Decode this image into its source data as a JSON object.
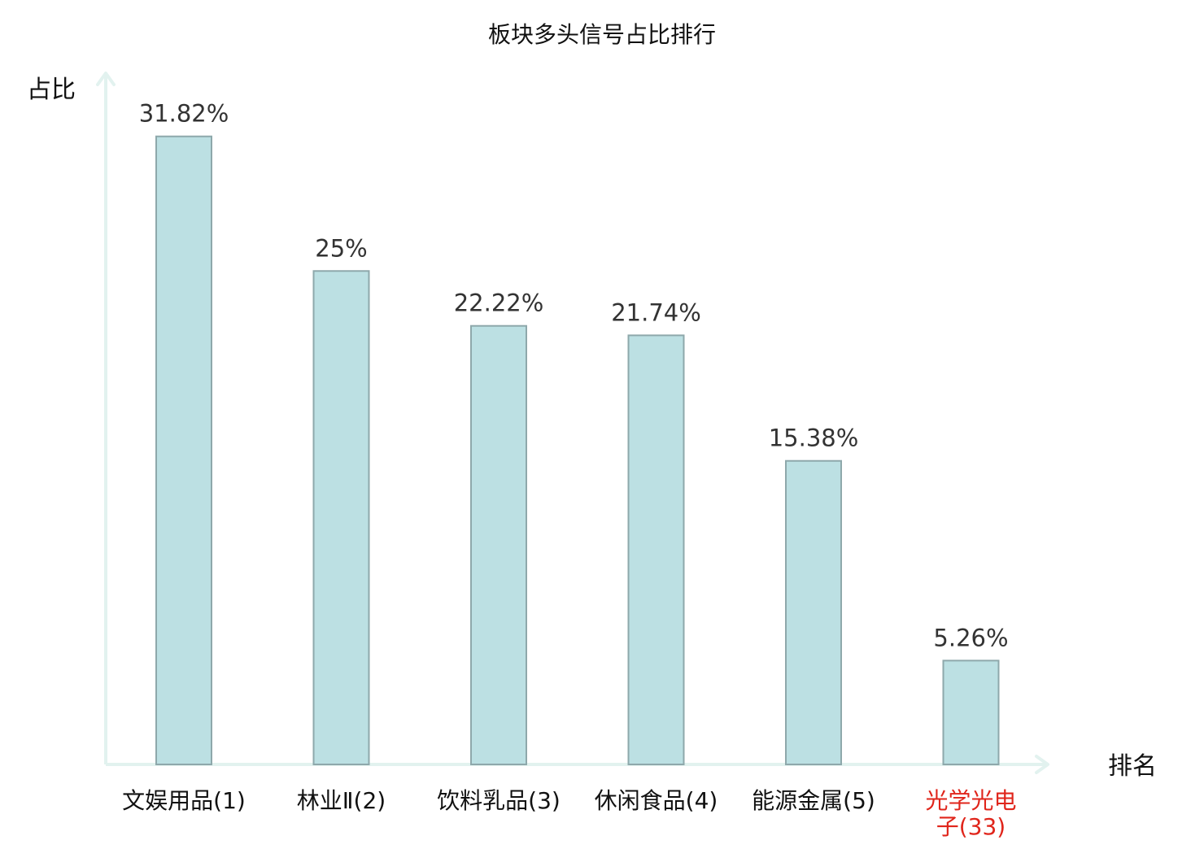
{
  "chart_data": {
    "type": "bar",
    "title": "板块多头信号占比排行",
    "ylabel": "占比",
    "xlabel": "排名",
    "categories": [
      "文娱用品(1)",
      "林业Ⅱ(2)",
      "饮料乳品(3)",
      "休闲食品(4)",
      "能源金属(5)",
      "光学光电子(33)"
    ],
    "category_lines": [
      [
        "文娱用品(1)"
      ],
      [
        "林业Ⅱ(2)"
      ],
      [
        "饮料乳品(3)"
      ],
      [
        "休闲食品(4)"
      ],
      [
        "能源金属(5)"
      ],
      [
        "光学光电",
        "子(33)"
      ]
    ],
    "values": [
      31.82,
      25,
      22.22,
      21.74,
      15.38,
      5.26
    ],
    "value_labels": [
      "31.82%",
      "25%",
      "22.22%",
      "21.74%",
      "15.38%",
      "5.26%"
    ],
    "highlight_index": 5,
    "ylim": [
      0,
      35
    ],
    "grid": false,
    "legend": "none",
    "colors": {
      "bar_fill": "#bce0e3",
      "bar_stroke": "#8ea8ab",
      "axis": "#e2f2ef",
      "text": "#333333",
      "highlight_text": "#e0251b"
    }
  }
}
